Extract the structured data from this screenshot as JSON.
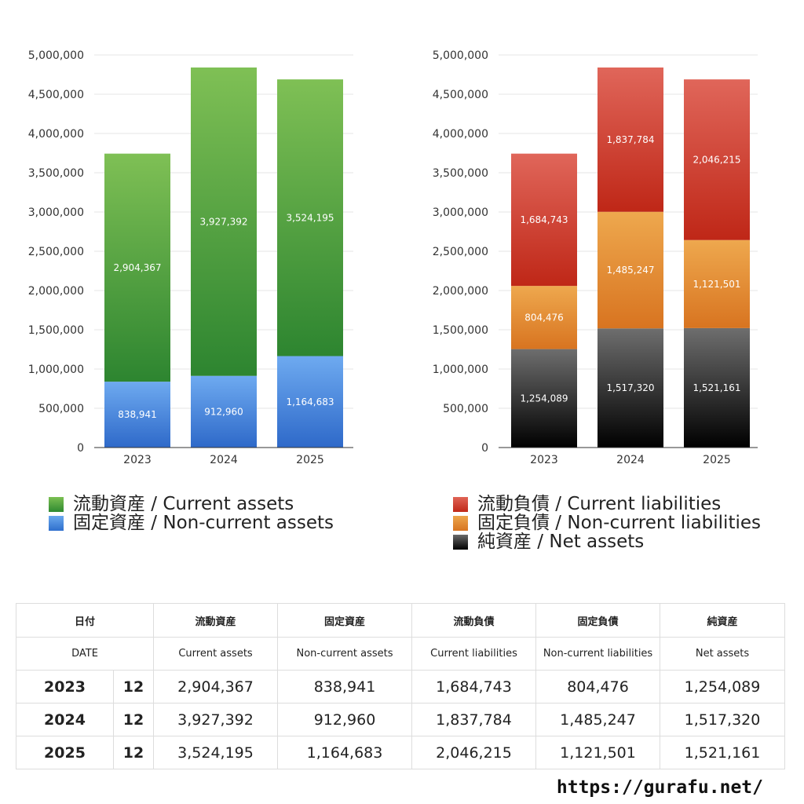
{
  "chart_data": [
    {
      "type": "bar",
      "stacked": true,
      "categories": [
        "2023",
        "2024",
        "2025"
      ],
      "ylim": [
        0,
        5000000
      ],
      "yticks": [
        "0",
        "500,000",
        "1,000,000",
        "1,500,000",
        "2,000,000",
        "2,500,000",
        "3,000,000",
        "3,500,000",
        "4,000,000",
        "4,500,000",
        "5,000,000"
      ],
      "grid": true,
      "legend_position": "bottom",
      "series": [
        {
          "name": "固定資産 / Non-current assets",
          "color": "#4f8fe0",
          "values": [
            838941,
            912960,
            1164683
          ],
          "labels": [
            "838,941",
            "912,960",
            "1,164,683"
          ]
        },
        {
          "name": "流動資産 / Current assets",
          "color": "#4a9e3c",
          "values": [
            2904367,
            3927392,
            3524195
          ],
          "labels": [
            "2,904,367",
            "3,927,392",
            "3,524,195"
          ]
        }
      ]
    },
    {
      "type": "bar",
      "stacked": true,
      "categories": [
        "2023",
        "2024",
        "2025"
      ],
      "ylim": [
        0,
        5000000
      ],
      "yticks": [
        "0",
        "500,000",
        "1,000,000",
        "1,500,000",
        "2,000,000",
        "2,500,000",
        "3,000,000",
        "3,500,000",
        "4,000,000",
        "4,500,000",
        "5,000,000"
      ],
      "grid": true,
      "legend_position": "bottom",
      "series": [
        {
          "name": "純資産 / Net assets",
          "color": "#333333",
          "values": [
            1254089,
            1517320,
            1521161
          ],
          "labels": [
            "1,254,089",
            "1,517,320",
            "1,521,161"
          ]
        },
        {
          "name": "固定負債 / Non-current liabilities",
          "color": "#e58a33",
          "values": [
            804476,
            1485247,
            1121501
          ],
          "labels": [
            "804,476",
            "1,485,247",
            "1,121,501"
          ]
        },
        {
          "name": "流動負債 / Current liabilities",
          "color": "#d0422f",
          "values": [
            1684743,
            1837784,
            2046215
          ],
          "labels": [
            "1,684,743",
            "1,837,784",
            "2,046,215"
          ]
        }
      ]
    }
  ],
  "legend_left": [
    {
      "label": "流動資産 / Current assets",
      "swatch": "green"
    },
    {
      "label": "固定資産 / Non-current assets",
      "swatch": "blue"
    }
  ],
  "legend_right": [
    {
      "label": "流動負債 / Current liabilities",
      "swatch": "red"
    },
    {
      "label": "固定負債 / Non-current liabilities",
      "swatch": "orange"
    },
    {
      "label": "純資産 / Net assets",
      "swatch": "black"
    }
  ],
  "table": {
    "header_jp": {
      "date": "日付",
      "current_assets": "流動資産",
      "noncurrent_assets": "固定資産",
      "current_liabilities": "流動負債",
      "noncurrent_liabilities": "固定負債",
      "net_assets": "純資産"
    },
    "header_en": {
      "date": "DATE",
      "current_assets": "Current assets",
      "noncurrent_assets": "Non-current assets",
      "current_liabilities": "Current liabilities",
      "noncurrent_liabilities": "Non-current liabilities",
      "net_assets": "Net assets"
    },
    "rows": [
      {
        "year": "2023",
        "month": "12",
        "current_assets": "2,904,367",
        "noncurrent_assets": "838,941",
        "current_liabilities": "1,684,743",
        "noncurrent_liabilities": "804,476",
        "net_assets": "1,254,089"
      },
      {
        "year": "2024",
        "month": "12",
        "current_assets": "3,927,392",
        "noncurrent_assets": "912,960",
        "current_liabilities": "1,837,784",
        "noncurrent_liabilities": "1,485,247",
        "net_assets": "1,517,320"
      },
      {
        "year": "2025",
        "month": "12",
        "current_assets": "3,524,195",
        "noncurrent_assets": "1,164,683",
        "current_liabilities": "2,046,215",
        "noncurrent_liabilities": "1,121,501",
        "net_assets": "1,521,161"
      }
    ]
  },
  "footer": {
    "url": "https://gurafu.net/"
  }
}
